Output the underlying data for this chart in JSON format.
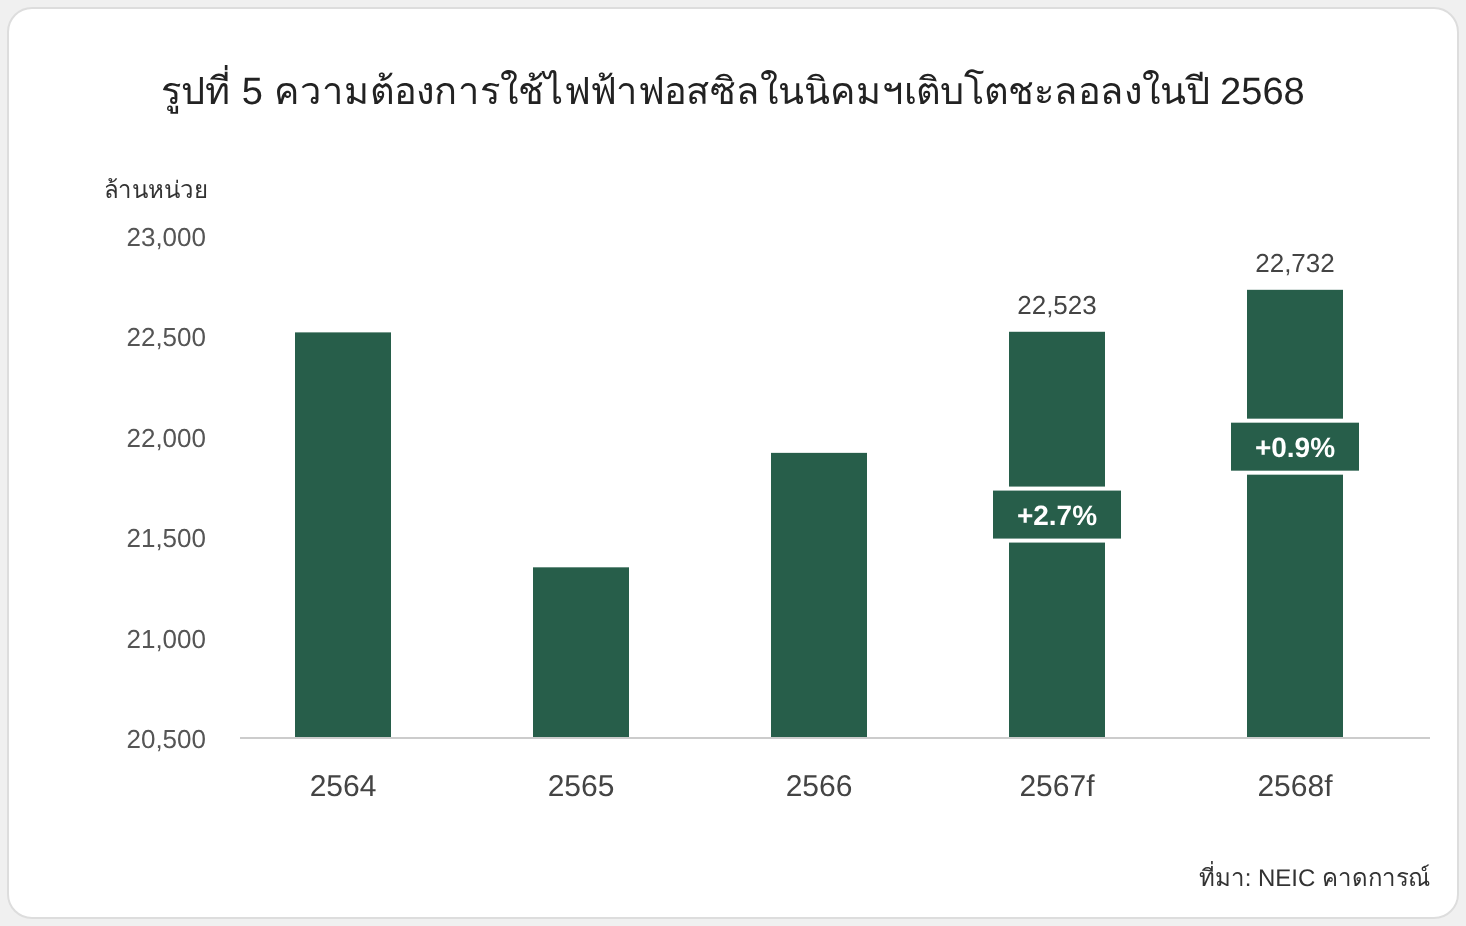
{
  "chart_data": {
    "type": "bar",
    "title": "รูปที่ 5 ความต้องการใช้ไฟฟ้าฟอสซิลในนิคมฯเติบโตชะลอลงในปี 2568",
    "ylabel": "ล้านหน่วย",
    "categories": [
      "2564",
      "2565",
      "2566",
      "2567f",
      "2568f"
    ],
    "values": [
      22520,
      21350,
      21920,
      22523,
      22732
    ],
    "value_labels": [
      null,
      null,
      null,
      "22,523",
      "22,732"
    ],
    "color": "#275e4a",
    "ylim": [
      20500,
      23000
    ],
    "yticks": [
      {
        "value": 20500,
        "label": "20,500"
      },
      {
        "value": 21000,
        "label": "21,000"
      },
      {
        "value": 21500,
        "label": "21,500"
      },
      {
        "value": 22000,
        "label": "22,000"
      },
      {
        "value": 22500,
        "label": "22,500"
      },
      {
        "value": 23000,
        "label": "23,000"
      }
    ],
    "grid": false,
    "annotations": [
      "+2.7%",
      "+0.9%",
      "ที่มา: NEIC คาดการณ์"
    ]
  }
}
